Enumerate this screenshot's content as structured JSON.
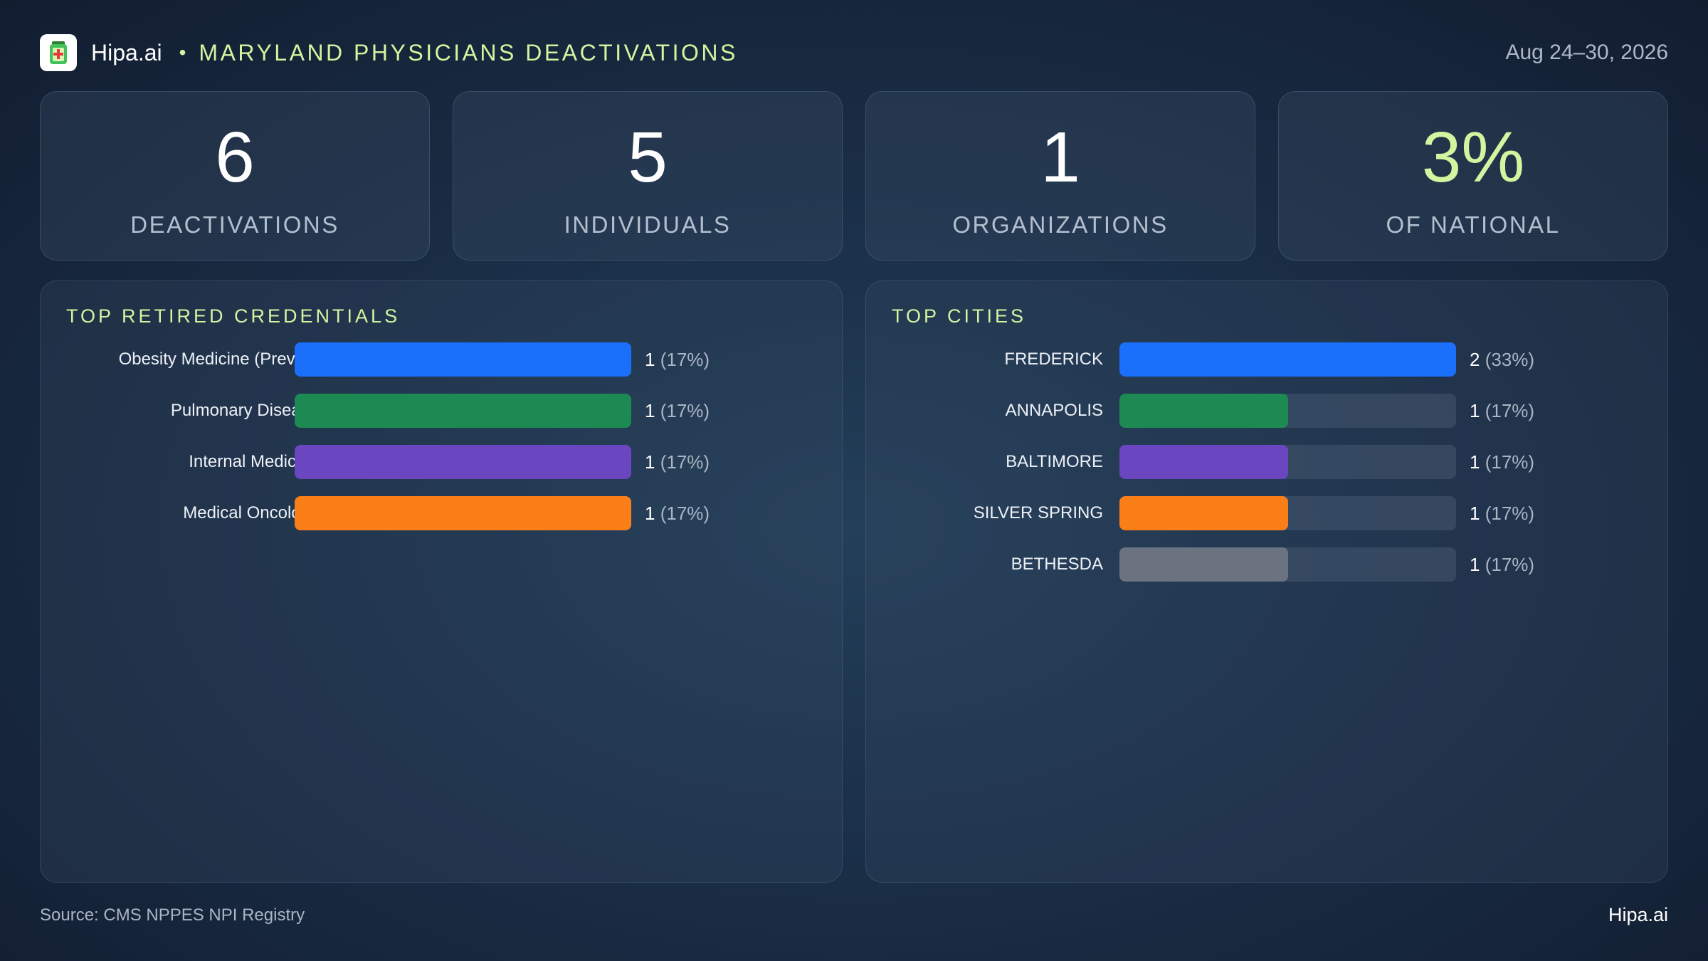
{
  "header": {
    "brand": "Hipa.ai",
    "separator": "•",
    "title": "MARYLAND PHYSICIANS DEACTIVATIONS",
    "date": "Aug 24–30, 2026",
    "logo_icon": "medical-clipboard-icon"
  },
  "kpis": [
    {
      "value": "6",
      "label": "DEACTIVATIONS"
    },
    {
      "value": "5",
      "label": "INDIVIDUALS"
    },
    {
      "value": "1",
      "label": "ORGANIZATIONS"
    },
    {
      "value": "3%",
      "label": "OF NATIONAL"
    }
  ],
  "colors": {
    "accent": "#d3f5a0",
    "blue": "#1a6ffb",
    "green": "#1c8a52",
    "purple": "#6b46c1",
    "orange": "#fb7f19",
    "gray": "#6c7380"
  },
  "chart_data": [
    {
      "type": "bar",
      "orientation": "horizontal",
      "title": "TOP RETIRED CREDENTIALS",
      "categories": [
        "Obesity Medicine (Preve...",
        "Pulmonary Disease",
        "Internal Medicine",
        "Medical Oncology"
      ],
      "values": [
        1,
        1,
        1,
        1
      ],
      "value_labels": [
        "1",
        "1",
        "1",
        "1"
      ],
      "percent_labels": [
        "(17%)",
        "(17%)",
        "(17%)",
        "(17%)"
      ],
      "bar_colors": [
        "#1a6ffb",
        "#1c8a52",
        "#6b46c1",
        "#fb7f19"
      ],
      "xlim": [
        0,
        1
      ]
    },
    {
      "type": "bar",
      "orientation": "horizontal",
      "title": "TOP CITIES",
      "categories": [
        "FREDERICK",
        "ANNAPOLIS",
        "BALTIMORE",
        "SILVER SPRING",
        "BETHESDA"
      ],
      "values": [
        2,
        1,
        1,
        1,
        1
      ],
      "value_labels": [
        "2",
        "1",
        "1",
        "1",
        "1"
      ],
      "percent_labels": [
        "(33%)",
        "(17%)",
        "(17%)",
        "(17%)",
        "(17%)"
      ],
      "bar_colors": [
        "#1a6ffb",
        "#1c8a52",
        "#6b46c1",
        "#fb7f19",
        "#6c7380"
      ],
      "xlim": [
        0,
        2
      ]
    }
  ],
  "footer": {
    "source": "Source: CMS NPPES NPI Registry",
    "brand": "Hipa.ai"
  }
}
